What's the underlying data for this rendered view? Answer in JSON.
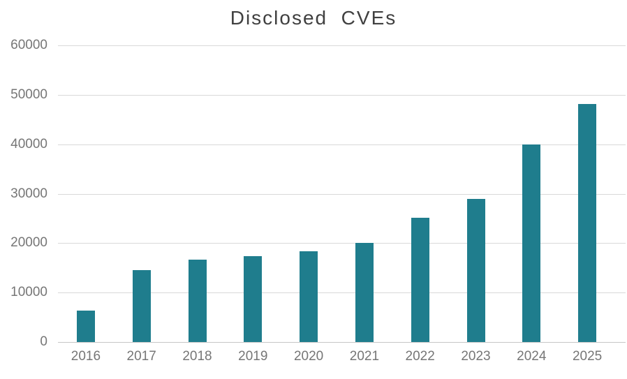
{
  "chart_data": {
    "type": "bar",
    "title": "Disclosed  CVEs",
    "categories": [
      "2016",
      "2017",
      "2018",
      "2019",
      "2020",
      "2021",
      "2022",
      "2023",
      "2024",
      "2025"
    ],
    "values": [
      6400,
      14500,
      16600,
      17300,
      18400,
      20100,
      25100,
      28900,
      40000,
      48100
    ],
    "xlabel": "",
    "ylabel": "",
    "ylim": [
      0,
      60000
    ],
    "yticks": [
      0,
      10000,
      20000,
      30000,
      40000,
      50000,
      60000
    ],
    "grid": true,
    "legend_position": "none",
    "bar_color": "#1F7D8D",
    "title_color": "#404040",
    "tick_label_color": "#767676",
    "gridline_color": "#D9D9D9",
    "axis_line_color": "#C6C6C6",
    "background_color": "#FFFFFF"
  }
}
